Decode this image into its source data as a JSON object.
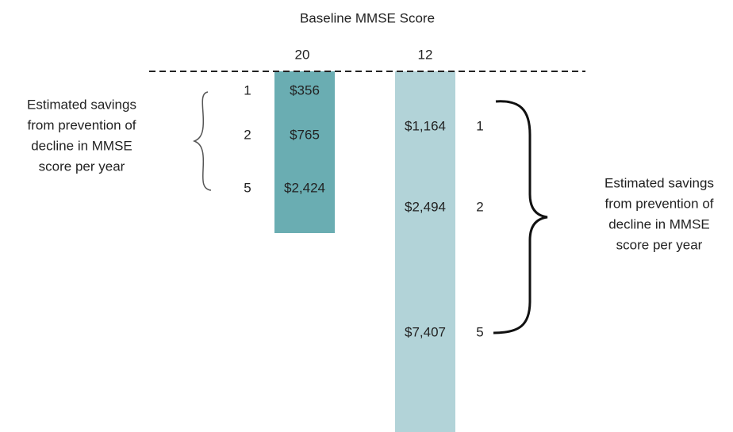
{
  "header": {
    "title": "Baseline MMSE Score"
  },
  "columns": [
    {
      "label": "20",
      "rows": [
        {
          "points": "1",
          "savings": "$356"
        },
        {
          "points": "2",
          "savings": "$765"
        },
        {
          "points": "5",
          "savings": "$2,424"
        }
      ],
      "note_lines": [
        "Estimated savings",
        "from prevention of",
        "decline in MMSE",
        "score per year"
      ]
    },
    {
      "label": "12",
      "rows": [
        {
          "points": "1",
          "savings": "$1,164"
        },
        {
          "points": "2",
          "savings": "$2,494"
        },
        {
          "points": "5",
          "savings": "$7,407"
        }
      ],
      "note_lines": [
        "Estimated savings",
        "from prevention of",
        "decline in MMSE",
        "score per year"
      ]
    }
  ]
}
